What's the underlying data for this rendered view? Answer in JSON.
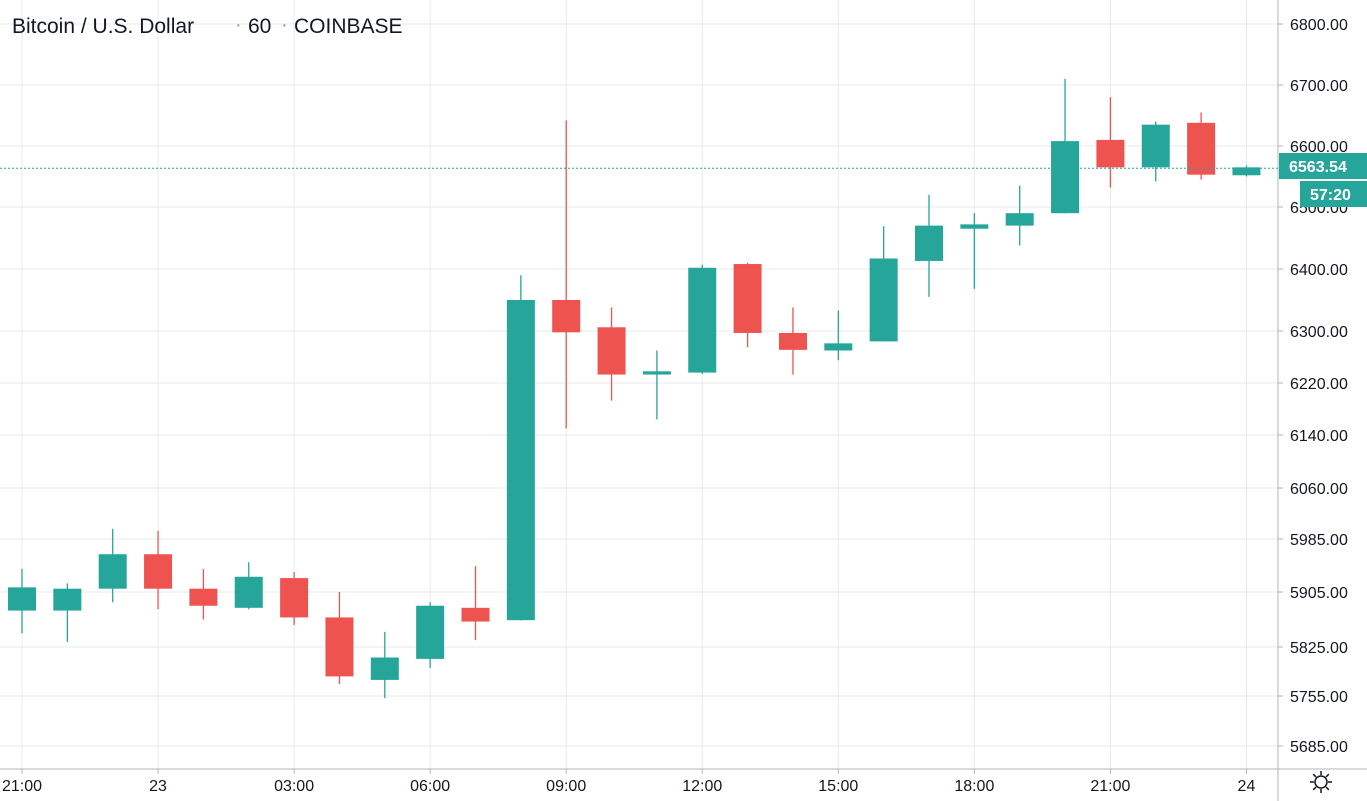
{
  "header": {
    "symbol": "Bitcoin / U.S. Dollar",
    "sep": "·",
    "interval": "60",
    "exchange": "COINBASE"
  },
  "price_tag": {
    "value": "6563.54",
    "countdown": "57:20"
  },
  "colors": {
    "up": "#26a69a",
    "down": "#ef5350",
    "grid": "#e6e9ee",
    "axis_line": "#b2b5be",
    "text": "#131722"
  },
  "chart_data": {
    "type": "candlestick",
    "title": "Bitcoin / U.S. Dollar · 60 · COINBASE",
    "last_price": 6563.54,
    "y_ticks": [
      {
        "v": 6800,
        "label": "6800.00"
      },
      {
        "v": 6700,
        "label": "6700.00"
      },
      {
        "v": 6600,
        "label": "6600.00"
      },
      {
        "v": 6500,
        "label": "6500.00"
      },
      {
        "v": 6400,
        "label": "6400.00"
      },
      {
        "v": 6300,
        "label": "6300.00"
      },
      {
        "v": 6220,
        "label": "6220.00"
      },
      {
        "v": 6140,
        "label": "6140.00"
      },
      {
        "v": 6060,
        "label": "6060.00"
      },
      {
        "v": 5985,
        "label": "5985.00"
      },
      {
        "v": 5905,
        "label": "5905.00"
      },
      {
        "v": 5825,
        "label": "5825.00"
      },
      {
        "v": 5755,
        "label": "5755.00"
      },
      {
        "v": 5685,
        "label": "5685.00"
      }
    ],
    "x_ticks": [
      {
        "i": 0,
        "label": "21:00"
      },
      {
        "i": 3,
        "label": "23"
      },
      {
        "i": 6,
        "label": "03:00"
      },
      {
        "i": 9,
        "label": "06:00"
      },
      {
        "i": 12,
        "label": "09:00"
      },
      {
        "i": 15,
        "label": "12:00"
      },
      {
        "i": 18,
        "label": "15:00"
      },
      {
        "i": 21,
        "label": "18:00"
      },
      {
        "i": 24,
        "label": "21:00"
      },
      {
        "i": 27,
        "label": "24"
      }
    ],
    "candles": [
      {
        "o": 5878,
        "h": 5940,
        "l": 5845,
        "c": 5912
      },
      {
        "o": 5878,
        "h": 5918,
        "l": 5832,
        "c": 5910
      },
      {
        "o": 5910,
        "h": 6000,
        "l": 5890,
        "c": 5962
      },
      {
        "o": 5962,
        "h": 5997,
        "l": 5880,
        "c": 5910
      },
      {
        "o": 5910,
        "h": 5940,
        "l": 5865,
        "c": 5885
      },
      {
        "o": 5882,
        "h": 5950,
        "l": 5880,
        "c": 5928
      },
      {
        "o": 5926,
        "h": 5935,
        "l": 5857,
        "c": 5868
      },
      {
        "o": 5868,
        "h": 5905,
        "l": 5772,
        "c": 5783
      },
      {
        "o": 5778,
        "h": 5847,
        "l": 5752,
        "c": 5810
      },
      {
        "o": 5808,
        "h": 5890,
        "l": 5795,
        "c": 5885
      },
      {
        "o": 5882,
        "h": 5944,
        "l": 5835,
        "c": 5862
      },
      {
        "o": 5864,
        "h": 6390,
        "l": 5864,
        "c": 6350
      },
      {
        "o": 6350,
        "h": 6642,
        "l": 6150,
        "c": 6298
      },
      {
        "o": 6306,
        "h": 6338,
        "l": 6193,
        "c": 6233
      },
      {
        "o": 6233,
        "h": 6270,
        "l": 6164,
        "c": 6238
      },
      {
        "o": 6236,
        "h": 6407,
        "l": 6234,
        "c": 6402
      },
      {
        "o": 6408,
        "h": 6410,
        "l": 6275,
        "c": 6297
      },
      {
        "o": 6297,
        "h": 6338,
        "l": 6233,
        "c": 6271
      },
      {
        "o": 6270,
        "h": 6333,
        "l": 6255,
        "c": 6281
      },
      {
        "o": 6284,
        "h": 6469,
        "l": 6284,
        "c": 6417
      },
      {
        "o": 6413,
        "h": 6520,
        "l": 6355,
        "c": 6470
      },
      {
        "o": 6465,
        "h": 6490,
        "l": 6368,
        "c": 6472
      },
      {
        "o": 6470,
        "h": 6535,
        "l": 6438,
        "c": 6490
      },
      {
        "o": 6490,
        "h": 6710,
        "l": 6490,
        "c": 6608
      },
      {
        "o": 6610,
        "h": 6680,
        "l": 6532,
        "c": 6565
      },
      {
        "o": 6565,
        "h": 6640,
        "l": 6542,
        "c": 6635
      },
      {
        "o": 6638,
        "h": 6655,
        "l": 6545,
        "c": 6553
      },
      {
        "o": 6552,
        "h": 6568,
        "l": 6550,
        "c": 6565
      }
    ]
  }
}
